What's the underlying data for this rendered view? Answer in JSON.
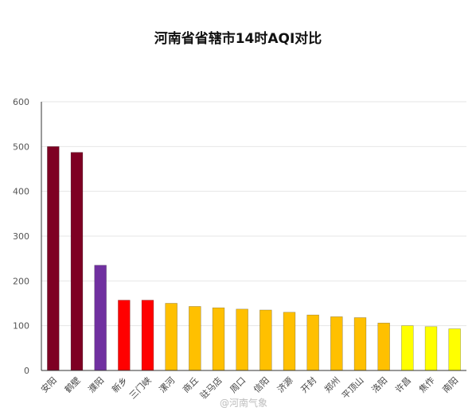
{
  "chart_data": {
    "type": "bar",
    "title": "河南省省辖市14时AQI对比",
    "xlabel": "",
    "ylabel": "",
    "categories": [
      "安阳",
      "鹤壁",
      "濮阳",
      "新乡",
      "三门峡",
      "漯河",
      "商丘",
      "驻马店",
      "周口",
      "信阳",
      "济源",
      "开封",
      "郑州",
      "平顶山",
      "洛阳",
      "许昌",
      "焦作",
      "南阳"
    ],
    "values": [
      500,
      487,
      235,
      157,
      157,
      150,
      143,
      140,
      137,
      135,
      130,
      124,
      120,
      118,
      106,
      100,
      98,
      93
    ],
    "bar_colors": [
      "#7e0023",
      "#7e0023",
      "#7030a0",
      "#ff0000",
      "#ff0000",
      "#ffc000",
      "#ffc000",
      "#ffc000",
      "#ffc000",
      "#ffc000",
      "#ffc000",
      "#ffc000",
      "#ffc000",
      "#ffc000",
      "#ffc000",
      "#ffff00",
      "#ffff00",
      "#ffff00"
    ],
    "ylim": [
      0,
      600
    ],
    "yticks": [
      0,
      100,
      200,
      300,
      400,
      500,
      600
    ],
    "grid": true,
    "legend": "none"
  },
  "watermark": "@河南气象"
}
